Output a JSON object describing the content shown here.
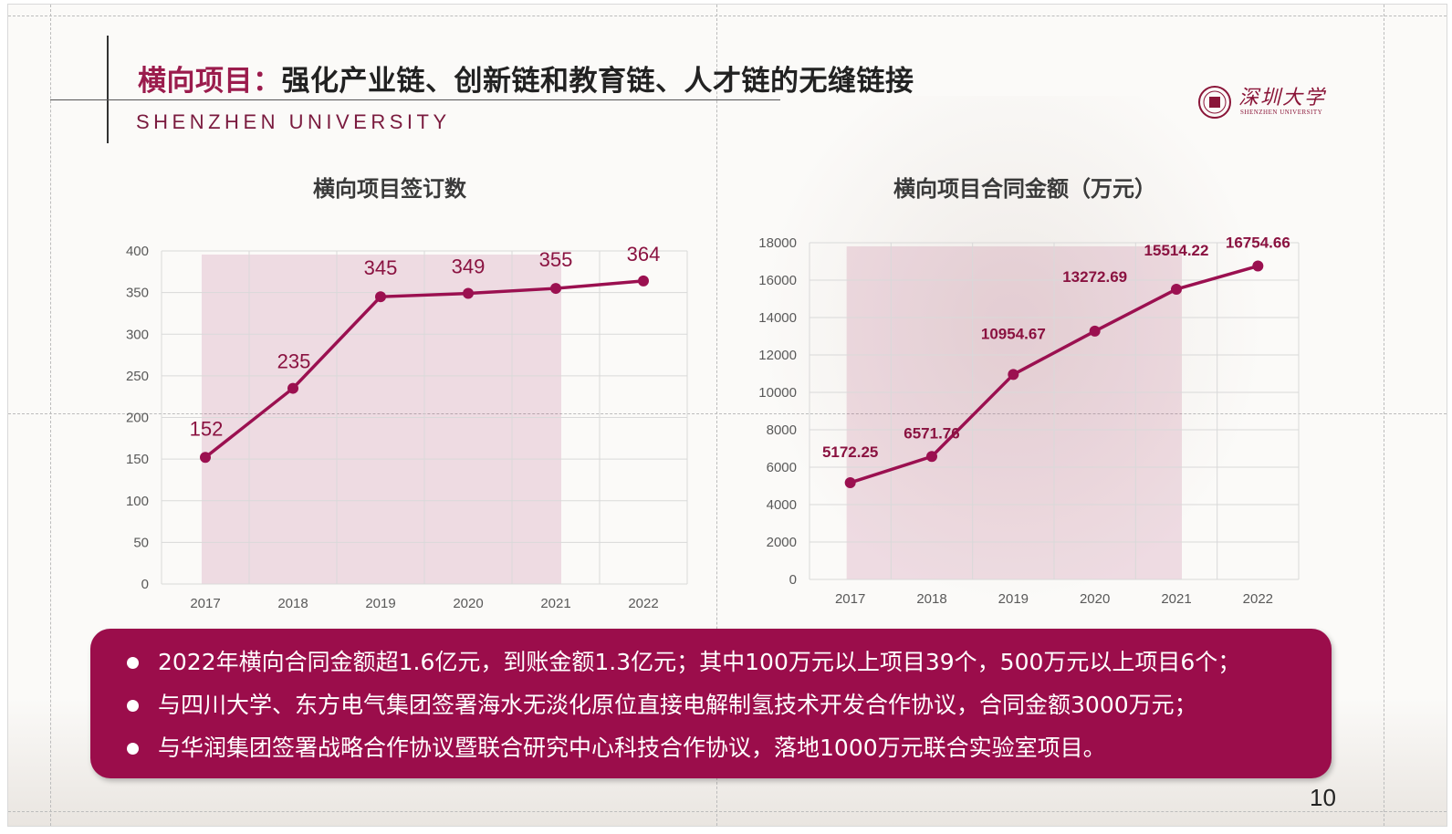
{
  "header": {
    "title_highlight": "横向项目：",
    "title_rest": "强化产业链、创新链和教育链、人才链的无缝链接",
    "subtitle": "SHENZHEN UNIVERSITY",
    "logo_text": "深圳大学",
    "logo_sub": "SHENZHEN UNIVERSITY"
  },
  "chart_data": [
    {
      "type": "line",
      "title": "横向项目签订数",
      "categories": [
        "2017",
        "2018",
        "2019",
        "2020",
        "2021",
        "2022"
      ],
      "values": [
        152,
        235,
        345,
        349,
        355,
        364
      ],
      "data_labels": [
        "152",
        "235",
        "345",
        "349",
        "355",
        "364"
      ],
      "ylim": [
        0,
        400
      ],
      "yticks": [
        "0",
        "50",
        "100",
        "150",
        "200",
        "250",
        "300",
        "350",
        "400"
      ],
      "grid": true,
      "color": "#9b1050",
      "highlight_categories": [
        "2017",
        "2021"
      ]
    },
    {
      "type": "line",
      "title": "横向项目合同金额（万元）",
      "categories": [
        "2017",
        "2018",
        "2019",
        "2020",
        "2021",
        "2022"
      ],
      "values": [
        5172.25,
        6571.76,
        10954.67,
        13272.69,
        15514.22,
        16754.66
      ],
      "data_labels": [
        "5172.25",
        "6571.76",
        "10954.67",
        "13272.69",
        "15514.22",
        "16754.66"
      ],
      "ylim": [
        0,
        18000
      ],
      "yticks": [
        "0",
        "2000",
        "4000",
        "6000",
        "8000",
        "10000",
        "12000",
        "14000",
        "16000",
        "18000"
      ],
      "grid": true,
      "color": "#9b1050",
      "highlight_categories": [
        "2017",
        "2021"
      ]
    }
  ],
  "info": {
    "bullets": [
      "2022年横向合同金额超1.6亿元，到账金额1.3亿元；其中100万元以上项目39个，500万元以上项目6个；",
      "与四川大学、东方电气集团签署海水无淡化原位直接电解制氢技术开发合作协议，合同金额3000万元；",
      "与华润集团签署战略合作协议暨联合研究中心科技合作协议，落地1000万元联合实验室项目。"
    ]
  },
  "page_number": "10"
}
